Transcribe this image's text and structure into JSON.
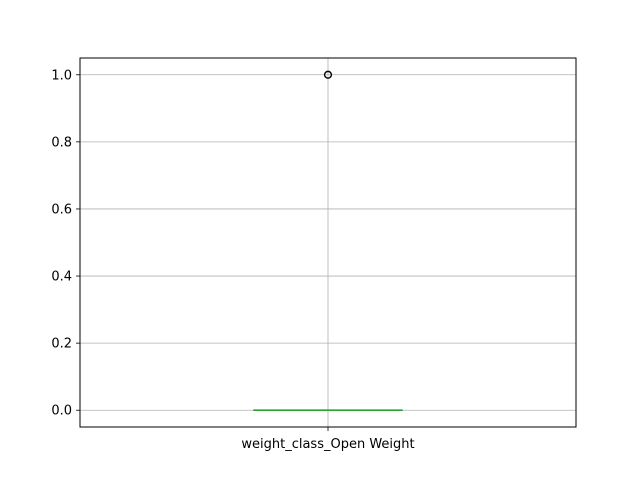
{
  "chart_data": {
    "type": "box",
    "categories": [
      "weight_class_Open Weight"
    ],
    "boxes": [
      {
        "category": "weight_class_Open Weight",
        "min": 0,
        "q1": 0,
        "median": 0,
        "q3": 0,
        "max": 0,
        "outliers": [
          1.0
        ]
      }
    ],
    "ylim": [
      -0.05,
      1.05
    ],
    "yticks": [
      0.0,
      0.2,
      0.4,
      0.6,
      0.8,
      1.0
    ],
    "ytick_labels": [
      "0.0",
      "0.2",
      "0.4",
      "0.6",
      "0.8",
      "1.0"
    ],
    "grid": true,
    "title": "",
    "xlabel": "",
    "ylabel": "",
    "colors": {
      "box": "#1f77b4",
      "median": "#2ca02c",
      "grid": "#b0b0b0",
      "axes": "#000000",
      "outlier": "#000000"
    }
  }
}
